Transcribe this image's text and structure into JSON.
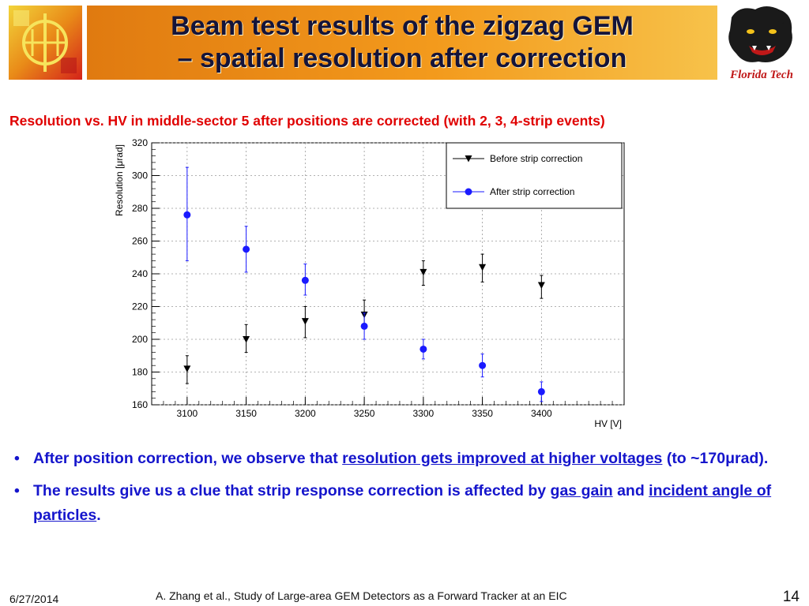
{
  "header": {
    "title_line1": "Beam test results of the zigzag GEM",
    "title_line2": "– spatial resolution after correction",
    "left_logo_icon": "gem-detector-logo-icon",
    "right_logo_icon": "panther-mascot-logo-icon",
    "right_logo_text": "Florida Tech"
  },
  "subtitle": "Resolution vs. HV in middle-sector 5 after positions are corrected (with 2, 3, 4-strip events)",
  "chart_data": {
    "type": "scatter",
    "xlabel": "HV [V]",
    "ylabel": "Resolution [μrad]",
    "xlim": [
      3070,
      3470
    ],
    "ylim": [
      160,
      320
    ],
    "grid": true,
    "legend_position": "top-right",
    "x_ticks": [
      "3100",
      "3150",
      "3200",
      "3250",
      "3300",
      "3350",
      "3400"
    ],
    "y_ticks": [
      "160",
      "180",
      "200",
      "220",
      "240",
      "260",
      "280",
      "300",
      "320"
    ],
    "series": [
      {
        "name": "Before strip correction",
        "marker": "triangle-down",
        "color": "#000000",
        "x": [
          3100,
          3150,
          3200,
          3250,
          3300,
          3350,
          3400
        ],
        "y": [
          182,
          200,
          211,
          215,
          241,
          244,
          233
        ],
        "yerr_low": [
          9,
          8,
          10,
          6,
          8,
          9,
          8
        ],
        "yerr_high": [
          8,
          9,
          9,
          9,
          7,
          8,
          6
        ]
      },
      {
        "name": "After strip correction",
        "marker": "circle",
        "color": "#1a1aff",
        "x": [
          3100,
          3150,
          3200,
          3250,
          3300,
          3350,
          3400
        ],
        "y": [
          276,
          255,
          236,
          208,
          194,
          184,
          168
        ],
        "yerr_low": [
          28,
          14,
          9,
          8,
          6,
          7,
          6
        ],
        "yerr_high": [
          29,
          14,
          10,
          8,
          6,
          7,
          6
        ]
      }
    ]
  },
  "bullets": {
    "b1_text_a": "After position correction, we observe that ",
    "b1_link": "resolution gets improved at higher voltages",
    "b1_text_b": " (to ~170μrad).",
    "b2_text_a": "The results give us a clue that strip response correction is affected by ",
    "b2_link1": "gas gain",
    "b2_text_b": " and ",
    "b2_link2": "incident angle of particles",
    "b2_text_c": "."
  },
  "footer": {
    "date": "6/27/2014",
    "citation": "A. Zhang et al., Study of Large-area GEM Detectors as a Forward Tracker at an EIC",
    "page": "14"
  }
}
